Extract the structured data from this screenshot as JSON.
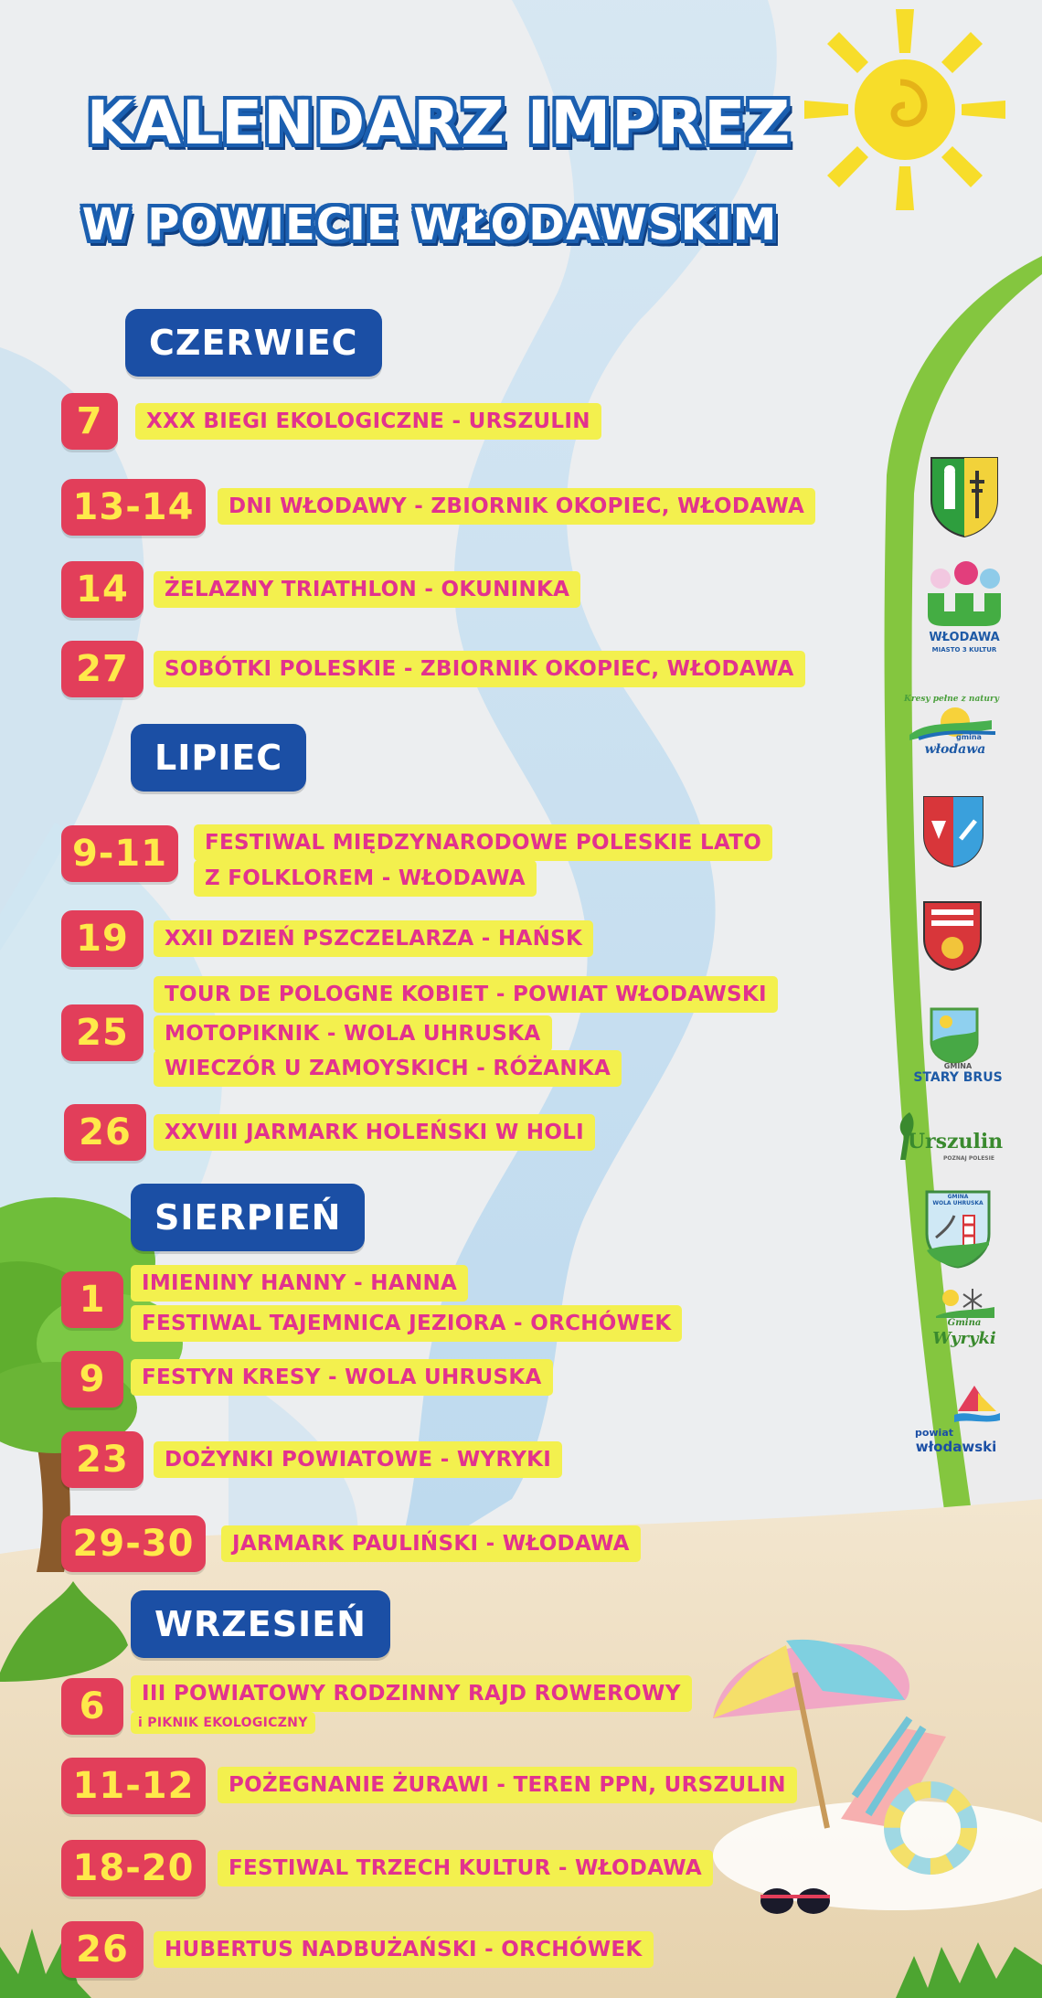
{
  "header": {
    "title_line1": "KALENDARZ IMPREZ",
    "title_line2": "W POWIECIE WŁODAWSKIM"
  },
  "colors": {
    "month_bg": "#1b4fa5",
    "date_bg": "#e23e5a",
    "date_text": "#ffe94a",
    "event_bg": "#f3f04e",
    "event_text": "#e2328e"
  },
  "months": [
    {
      "name": "CZERWIEC",
      "events": [
        {
          "date": "7",
          "lines": [
            "XXX BIEGI EKOLOGICZNE - URSZULIN"
          ]
        },
        {
          "date": "13-14",
          "lines": [
            "DNI WŁODAWY - ZBIORNIK OKOPIEC, WŁODAWA"
          ]
        },
        {
          "date": "14",
          "lines": [
            "ŻELAZNY TRIATHLON - OKUNINKA"
          ]
        },
        {
          "date": "27",
          "lines": [
            "SOBÓTKI POLESKIE - ZBIORNIK OKOPIEC, WŁODAWA"
          ]
        }
      ]
    },
    {
      "name": "LIPIEC",
      "events": [
        {
          "date": "9-11",
          "lines": [
            "FESTIWAL MIĘDZYNARODOWE POLESKIE LATO",
            "Z FOLKLOREM - WŁODAWA"
          ]
        },
        {
          "date": "19",
          "lines": [
            "XXII DZIEŃ PSZCZELARZA - HAŃSK"
          ]
        },
        {
          "date": "25",
          "lines": [
            "TOUR DE POLOGNE KOBIET - POWIAT WŁODAWSKI",
            "MOTOPIKNIK - WOLA UHRUSKA",
            "WIECZÓR U ZAMOYSKICH - RÓŻANKA"
          ]
        },
        {
          "date": "26",
          "lines": [
            "XXVIII JARMARK HOLEŃSKI W HOLI"
          ]
        }
      ]
    },
    {
      "name": "SIERPIEŃ",
      "events": [
        {
          "date": "1",
          "lines": [
            "IMIENINY HANNY - HANNA",
            "FESTIWAL TAJEMNICA JEZIORA - ORCHÓWEK"
          ]
        },
        {
          "date": "9",
          "lines": [
            "FESTYN KRESY - WOLA UHRUSKA"
          ]
        },
        {
          "date": "23",
          "lines": [
            "DOŻYNKI POWIATOWE - WYRYKI"
          ]
        },
        {
          "date": "29-30",
          "lines": [
            "JARMARK PAULIŃSKI - WŁODAWA"
          ]
        }
      ]
    },
    {
      "name": "WRZESIEŃ",
      "events": [
        {
          "date": "6",
          "lines": [
            "III POWIATOWY RODZINNY RAJD ROWEROWY",
            "i PIKNIK EKOLOGICZNY"
          ]
        },
        {
          "date": "11-12",
          "lines": [
            "POŻEGNANIE ŻURAWI - TEREN PPN, URSZULIN"
          ]
        },
        {
          "date": "18-20",
          "lines": [
            "FESTIWAL TRZECH KULTUR - WŁODAWA"
          ]
        },
        {
          "date": "26",
          "lines": [
            "HUBERTUS NADBUŻAŃSKI - ORCHÓWEK"
          ]
        }
      ]
    }
  ],
  "sponsors": {
    "wlodawa": {
      "name": "WŁODAWA",
      "sub": "MIASTO 3 KULTUR"
    },
    "gmina_wlodawa": {
      "slogan": "Kresy pełne z natury",
      "sub": "gmina",
      "name": "włodawa"
    },
    "stary_brus": {
      "sub": "GMINA",
      "name": "STARY BRUS"
    },
    "urszulin": {
      "name": "Urszulin",
      "sub": "POZNAJ POLESIE"
    },
    "wola_uhruska": {
      "sub": "GMINA",
      "name": "WOLA UHRUSKA"
    },
    "wyryki": {
      "sub": "Gmina",
      "name": "Wyryki"
    },
    "powiat": {
      "sub": "powiat",
      "name": "włodawski"
    }
  }
}
